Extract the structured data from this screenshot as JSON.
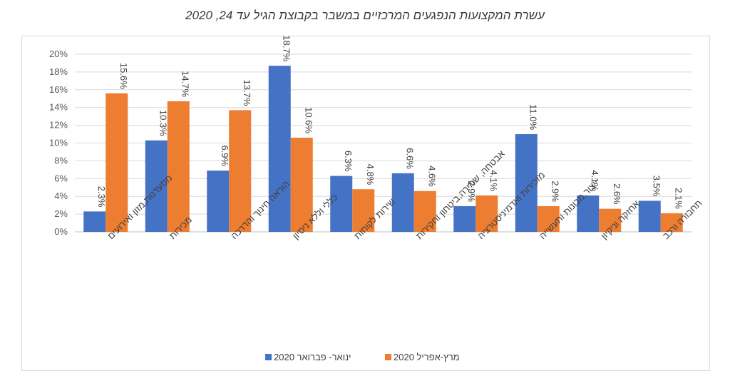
{
  "chart_data": {
    "type": "bar",
    "title": "עשרת המקצועות הנפגעים המרכזיים במשבר בקבוצת הגיל עד 24, 2020",
    "categories": [
      "מסעדנות,מזון ואירועים",
      "מכירות",
      "הוראה חינוך והדרכה",
      "כללי וללא ניסיון",
      "שירות לקוחות",
      "אבטחה, שמירה,ביטחון וחקירות",
      "מזכירות ואדמיניסטרציה",
      "ייצור,מכונות ותעשייה",
      "אחזקה וניקיון",
      "תחבורה ורכב"
    ],
    "series": [
      {
        "name": "ינואר- פברואר 2020",
        "color": "#4472C4",
        "values": [
          2.3,
          10.3,
          6.9,
          18.7,
          6.3,
          6.6,
          2.9,
          11.0,
          4.1,
          3.5
        ],
        "labels": [
          "2.3%",
          "10.3%",
          "6.9%",
          "18.7%",
          "6.3%",
          "6.6%",
          "2.9%",
          "11.0%",
          "4.1%",
          "3.5%"
        ]
      },
      {
        "name": "מרץ-אפריל 2020",
        "color": "#ED7D31",
        "values": [
          15.6,
          14.7,
          13.7,
          10.6,
          4.8,
          4.6,
          4.1,
          2.9,
          2.6,
          2.1
        ],
        "labels": [
          "15.6%",
          "14.7%",
          "13.7%",
          "10.6%",
          "4.8%",
          "4.6%",
          "4.1%",
          "2.9%",
          "2.6%",
          "2.1%"
        ]
      }
    ],
    "yticks": [
      "0%",
      "2%",
      "4%",
      "6%",
      "8%",
      "10%",
      "12%",
      "14%",
      "16%",
      "18%",
      "20%"
    ],
    "ylim": [
      0,
      20
    ],
    "grid": true,
    "legend_position": "bottom"
  }
}
